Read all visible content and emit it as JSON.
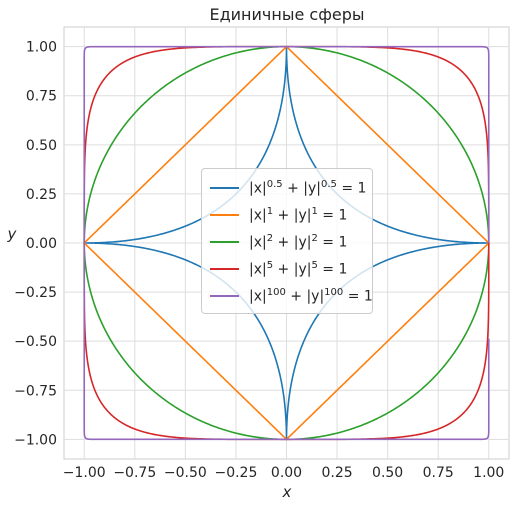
{
  "chart_data": {
    "type": "line",
    "title": "Единичные сферы",
    "xlabel": "x",
    "ylabel": "y",
    "xlim": [
      -1.1,
      1.1
    ],
    "ylim": [
      -1.1,
      1.1
    ],
    "xticks": [
      -1.0,
      -0.75,
      -0.5,
      -0.25,
      0.0,
      0.25,
      0.5,
      0.75,
      1.0
    ],
    "yticks": [
      -1.0,
      -0.75,
      -0.5,
      -0.25,
      0.0,
      0.25,
      0.5,
      0.75,
      1.0
    ],
    "xtick_labels": [
      "−1.00",
      "−0.75",
      "−0.50",
      "−0.25",
      "0.00",
      "0.25",
      "0.50",
      "0.75",
      "1.00"
    ],
    "ytick_labels": [
      "−1.00",
      "−0.75",
      "−0.50",
      "−0.25",
      "0.00",
      "0.25",
      "0.50",
      "0.75",
      "1.00"
    ],
    "grid": true,
    "legend_position": "center",
    "series": [
      {
        "name": "|x|^0.5 + |y|^0.5 = 1",
        "p": 0.5,
        "color": "#1f77b4",
        "label_parts": [
          "|x|",
          "0.5",
          " + |y|",
          "0.5",
          " = 1"
        ]
      },
      {
        "name": "|x|^1 + |y|^1 = 1",
        "p": 1,
        "color": "#ff7f0e",
        "label_parts": [
          "|x|",
          "1",
          " + |y|",
          "1",
          " = 1"
        ]
      },
      {
        "name": "|x|^2 + |y|^2 = 1",
        "p": 2,
        "color": "#2ca02c",
        "label_parts": [
          "|x|",
          "2",
          " + |y|",
          "2",
          " = 1"
        ]
      },
      {
        "name": "|x|^5 + |y|^5 = 1",
        "p": 5,
        "color": "#d62728",
        "label_parts": [
          "|x|",
          "5",
          " + |y|",
          "5",
          " = 1"
        ]
      },
      {
        "name": "|x|^100 + |y|^100 = 1",
        "p": 100,
        "color": "#9467bd",
        "label_parts": [
          "|x|",
          "100",
          " + |y|",
          "100",
          " = 1"
        ]
      }
    ]
  }
}
